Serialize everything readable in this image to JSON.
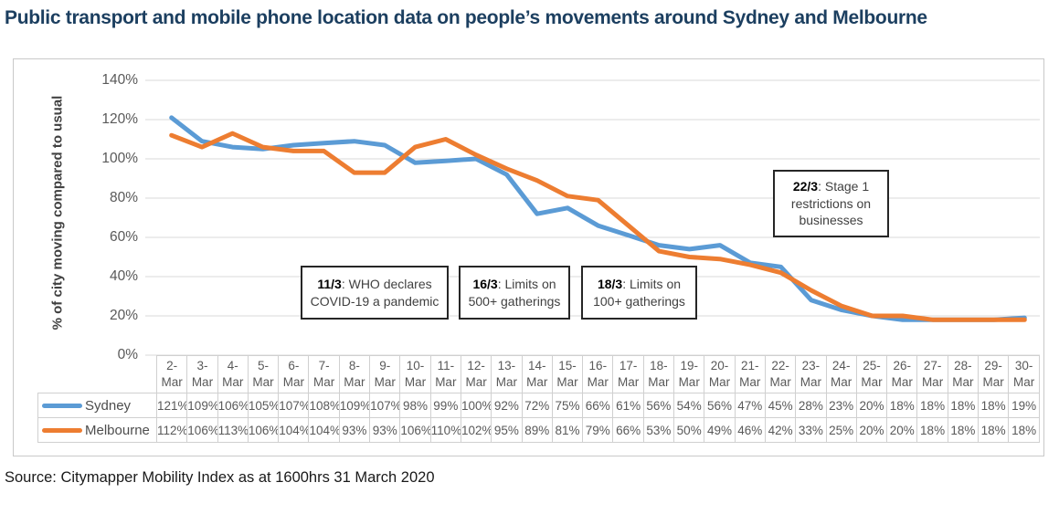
{
  "page": {
    "title": "Public transport and mobile phone location data on people’s movements around Sydney and Melbourne",
    "source": "Source: Citymapper Mobility Index as at 1600hrs 31 March 2020"
  },
  "colors": {
    "title_text": "#1C3F60",
    "sydney_line": "#5B9BD5",
    "melbourne_line": "#ED7D31",
    "gridline": "#D9D9D9",
    "axis_text": "#595959",
    "annotation_border": "#262626"
  },
  "chart_data": {
    "type": "line",
    "title": "",
    "ylabel": "% of city moving compared to usual",
    "xlabel": "",
    "ylim": [
      0,
      140
    ],
    "ytick_step": 20,
    "ytick_labels": [
      "0%",
      "20%",
      "40%",
      "60%",
      "80%",
      "100%",
      "120%",
      "140%"
    ],
    "grid": true,
    "legend_position": "table-rows-left",
    "categories": [
      "2-Mar",
      "3-Mar",
      "4-Mar",
      "5-Mar",
      "6-Mar",
      "7-Mar",
      "8-Mar",
      "9-Mar",
      "10-Mar",
      "11-Mar",
      "12-Mar",
      "13-Mar",
      "14-Mar",
      "15-Mar",
      "16-Mar",
      "17-Mar",
      "18-Mar",
      "19-Mar",
      "20-Mar",
      "21-Mar",
      "22-Mar",
      "23-Mar",
      "24-Mar",
      "25-Mar",
      "26-Mar",
      "27-Mar",
      "28-Mar",
      "29-Mar",
      "30-Mar"
    ],
    "series": [
      {
        "name": "Sydney",
        "color": "#5B9BD5",
        "values": [
          121,
          109,
          106,
          105,
          107,
          108,
          109,
          107,
          98,
          99,
          100,
          92,
          72,
          75,
          66,
          61,
          56,
          54,
          56,
          47,
          45,
          28,
          23,
          20,
          18,
          18,
          18,
          18,
          19
        ]
      },
      {
        "name": "Melbourne",
        "color": "#ED7D31",
        "values": [
          112,
          106,
          113,
          106,
          104,
          104,
          93,
          93,
          106,
          110,
          102,
          95,
          89,
          81,
          79,
          66,
          53,
          50,
          49,
          46,
          42,
          33,
          25,
          20,
          20,
          18,
          18,
          18,
          18
        ]
      }
    ],
    "annotations": [
      {
        "label": "11/3",
        "text": "WHO declares COVID-19 a pandemic"
      },
      {
        "label": "16/3",
        "text": "Limits on 500+ gatherings"
      },
      {
        "label": "18/3",
        "text": "Limits on 100+ gatherings"
      },
      {
        "label": "22/3",
        "text": "Stage 1 restrictions on businesses"
      }
    ]
  }
}
